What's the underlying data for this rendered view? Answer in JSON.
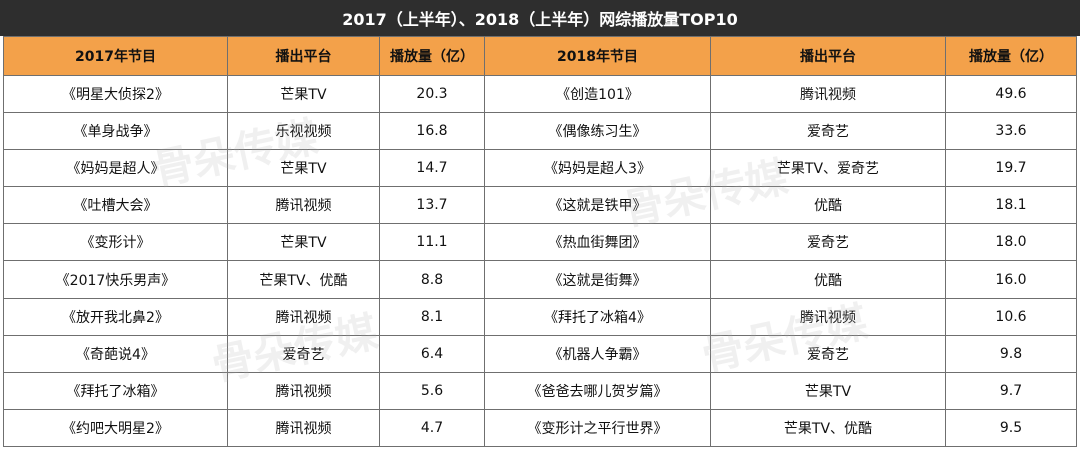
{
  "title": "2017（上半年）、2018（上半年）网综播放量TOP10",
  "headers": [
    "2017年节目",
    "播出平台",
    "播放量（亿）",
    "2018年节目",
    "播出平台",
    "播放量（亿）"
  ],
  "rows": [
    [
      "《明星大侦探2》",
      "芒果TV",
      "20.3",
      "《创造101》",
      "腾讯视频",
      "49.6"
    ],
    [
      "《单身战争》",
      "乐视视频",
      "16.8",
      "《偶像练习生》",
      "爱奇艺",
      "33.6"
    ],
    [
      "《妈妈是超人》",
      "芒果TV",
      "14.7",
      "《妈妈是超人3》",
      "芒果TV、爱奇艺",
      "19.7"
    ],
    [
      "《吐槽大会》",
      "腾讯视频",
      "13.7",
      "《这就是铁甲》",
      "优酷",
      "18.1"
    ],
    [
      "《变形计》",
      "芒果TV",
      "11.1",
      "《热血街舞团》",
      "爱奇艺",
      "18.0"
    ],
    [
      "《2017快乐男声》",
      "芒果TV、优酷",
      "8.8",
      "《这就是街舞》",
      "优酷",
      "16.0"
    ],
    [
      "《放开我北鼻2》",
      "腾讯视频",
      "8.1",
      "《拜托了冰箱4》",
      "腾讯视频",
      "10.6"
    ],
    [
      "《奇葩说4》",
      "爱奇艺",
      "6.4",
      "《机器人争霸》",
      "爱奇艺",
      "9.8"
    ],
    [
      "《拜托了冰箱》",
      "腾讯视频",
      "5.6",
      "《爸爸去哪儿贺岁篇》",
      "芒果TV",
      "9.7"
    ],
    [
      "《约吧大明星2》",
      "腾讯视频",
      "4.7",
      "《变形计之平行世界》",
      "芒果TV、优酷",
      "9.5"
    ]
  ],
  "watermark": "骨朵传媒",
  "colors": {
    "title_bg": "#2e2e2e",
    "header_bg": "#f3a14a",
    "border": "#6f6f6f"
  }
}
